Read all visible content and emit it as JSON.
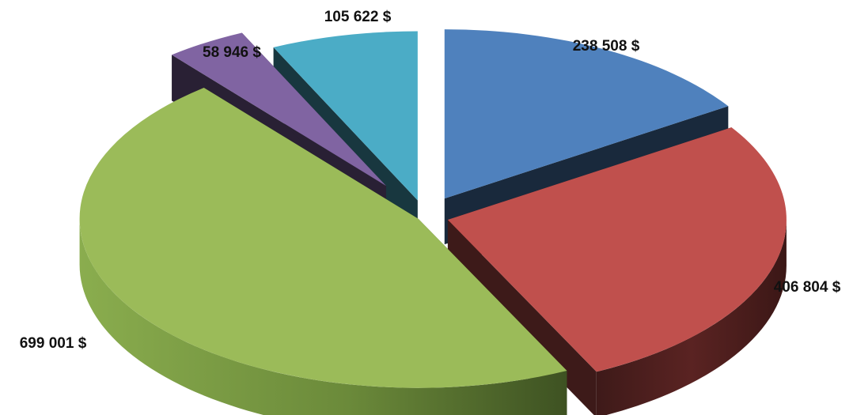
{
  "chart_data": {
    "type": "pie",
    "style": "3d-exploded",
    "legend": "none",
    "categories": [
      "",
      "",
      "",
      "",
      ""
    ],
    "values": [
      238508,
      406804,
      699001,
      58946,
      105622
    ],
    "labels": [
      "238 508 $",
      "406 804 $",
      "699 001 $",
      "58 946 $",
      "105 622 $"
    ],
    "colors": [
      "#4F81BD",
      "#C0504D",
      "#9BBB59",
      "#8064A2",
      "#4BACC6"
    ],
    "title": ""
  }
}
